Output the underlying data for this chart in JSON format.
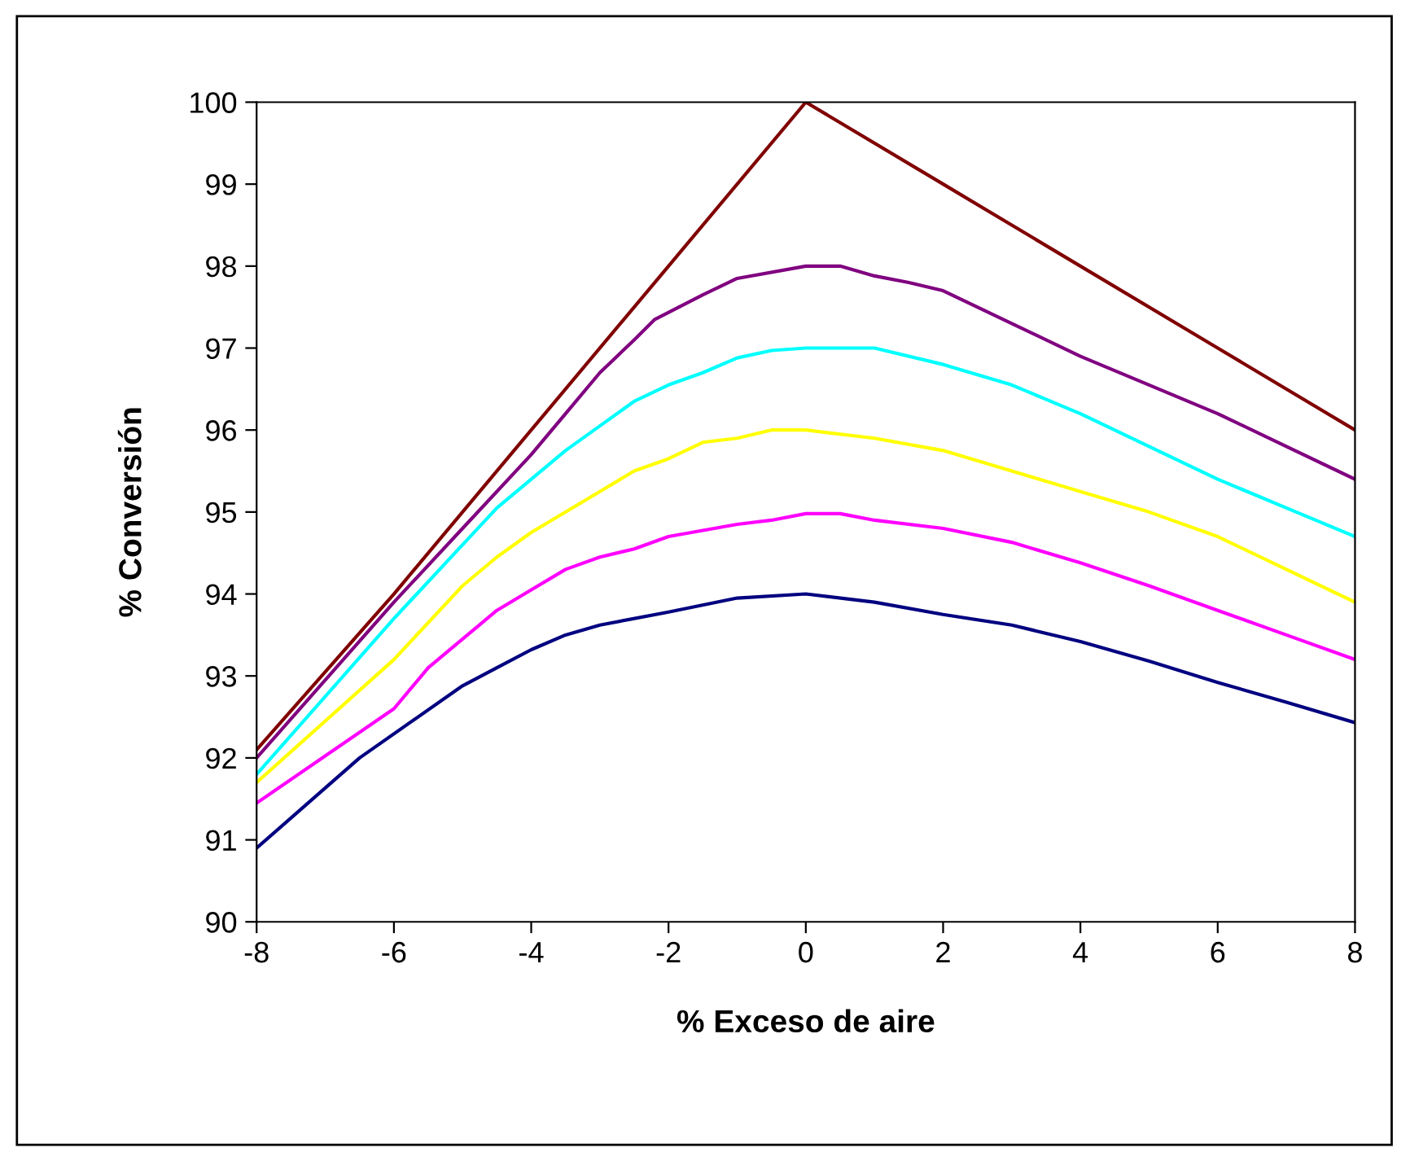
{
  "chart_data": {
    "type": "line",
    "xlabel": "% Exceso de aire",
    "ylabel": "% Conversión",
    "xlim": [
      -8,
      8
    ],
    "xticks": [
      -8,
      -6,
      -4,
      -2,
      0,
      2,
      4,
      6,
      8
    ],
    "ylim": [
      90,
      100
    ],
    "yticks": [
      90,
      91,
      92,
      93,
      94,
      95,
      96,
      97,
      98,
      99,
      100
    ],
    "grid": false,
    "legend": false,
    "marker": "none",
    "line_style": "solid",
    "series": [
      {
        "color": "#800000",
        "x": [
          -8,
          -6,
          -4,
          -2,
          0,
          2,
          4,
          6,
          8
        ],
        "values": [
          92.1,
          94.0,
          96.0,
          98.0,
          100,
          99,
          98,
          97,
          96
        ]
      },
      {
        "color": "#800080",
        "x": [
          -8,
          -6,
          -5,
          -4,
          -3.5,
          -3,
          -2.5,
          -2.2,
          -1.5,
          -1,
          0,
          0.5,
          1,
          1.5,
          2,
          3,
          4,
          5,
          6,
          7,
          8
        ],
        "values": [
          92.0,
          93.9,
          94.8,
          95.7,
          96.2,
          96.7,
          97.1,
          97.35,
          97.65,
          97.85,
          98.0,
          98.0,
          97.88,
          97.8,
          97.7,
          97.3,
          96.9,
          96.55,
          96.2,
          95.8,
          95.4
        ]
      },
      {
        "color": "#00ffff",
        "x": [
          -8,
          -6,
          -5,
          -4.5,
          -4,
          -3.5,
          -3,
          -2.5,
          -2,
          -1.5,
          -1,
          -0.5,
          0,
          1,
          2,
          3,
          4,
          5,
          6,
          7,
          8
        ],
        "values": [
          91.8,
          93.7,
          94.6,
          95.05,
          95.4,
          95.75,
          96.05,
          96.35,
          96.55,
          96.7,
          96.88,
          96.97,
          97.0,
          97.0,
          96.8,
          96.55,
          96.2,
          95.8,
          95.4,
          95.05,
          94.7
        ]
      },
      {
        "color": "#ffff00",
        "x": [
          -8,
          -6,
          -5,
          -4.5,
          -4,
          -3,
          -2.5,
          -2,
          -1.5,
          -1,
          -0.5,
          0,
          1,
          2,
          3,
          4,
          5,
          6,
          7,
          8
        ],
        "values": [
          91.7,
          93.2,
          94.1,
          94.45,
          94.75,
          95.25,
          95.5,
          95.65,
          95.85,
          95.9,
          96.0,
          96.0,
          95.9,
          95.75,
          95.5,
          95.25,
          95.0,
          94.7,
          94.3,
          93.9
        ]
      },
      {
        "color": "#ff00ff",
        "x": [
          -8,
          -6,
          -5.5,
          -5,
          -4.5,
          -4,
          -3.5,
          -3,
          -2.5,
          -2,
          -1,
          -0.5,
          0,
          0.5,
          1,
          2,
          3,
          4,
          5,
          6,
          7,
          8
        ],
        "values": [
          91.45,
          92.6,
          93.1,
          93.45,
          93.8,
          94.05,
          94.3,
          94.45,
          94.55,
          94.7,
          94.85,
          94.9,
          94.98,
          94.98,
          94.9,
          94.8,
          94.63,
          94.38,
          94.1,
          93.8,
          93.5,
          93.2
        ]
      },
      {
        "color": "#000080",
        "x": [
          -8,
          -6.5,
          -5,
          -4.5,
          -4,
          -3.5,
          -3,
          -2,
          -1,
          0,
          1,
          2,
          3,
          4,
          5,
          6,
          7,
          8
        ],
        "values": [
          90.9,
          92.0,
          92.88,
          93.1,
          93.32,
          93.5,
          93.62,
          93.78,
          93.95,
          94.0,
          93.9,
          93.75,
          93.62,
          93.42,
          93.18,
          92.92,
          92.68,
          92.43
        ]
      }
    ]
  }
}
